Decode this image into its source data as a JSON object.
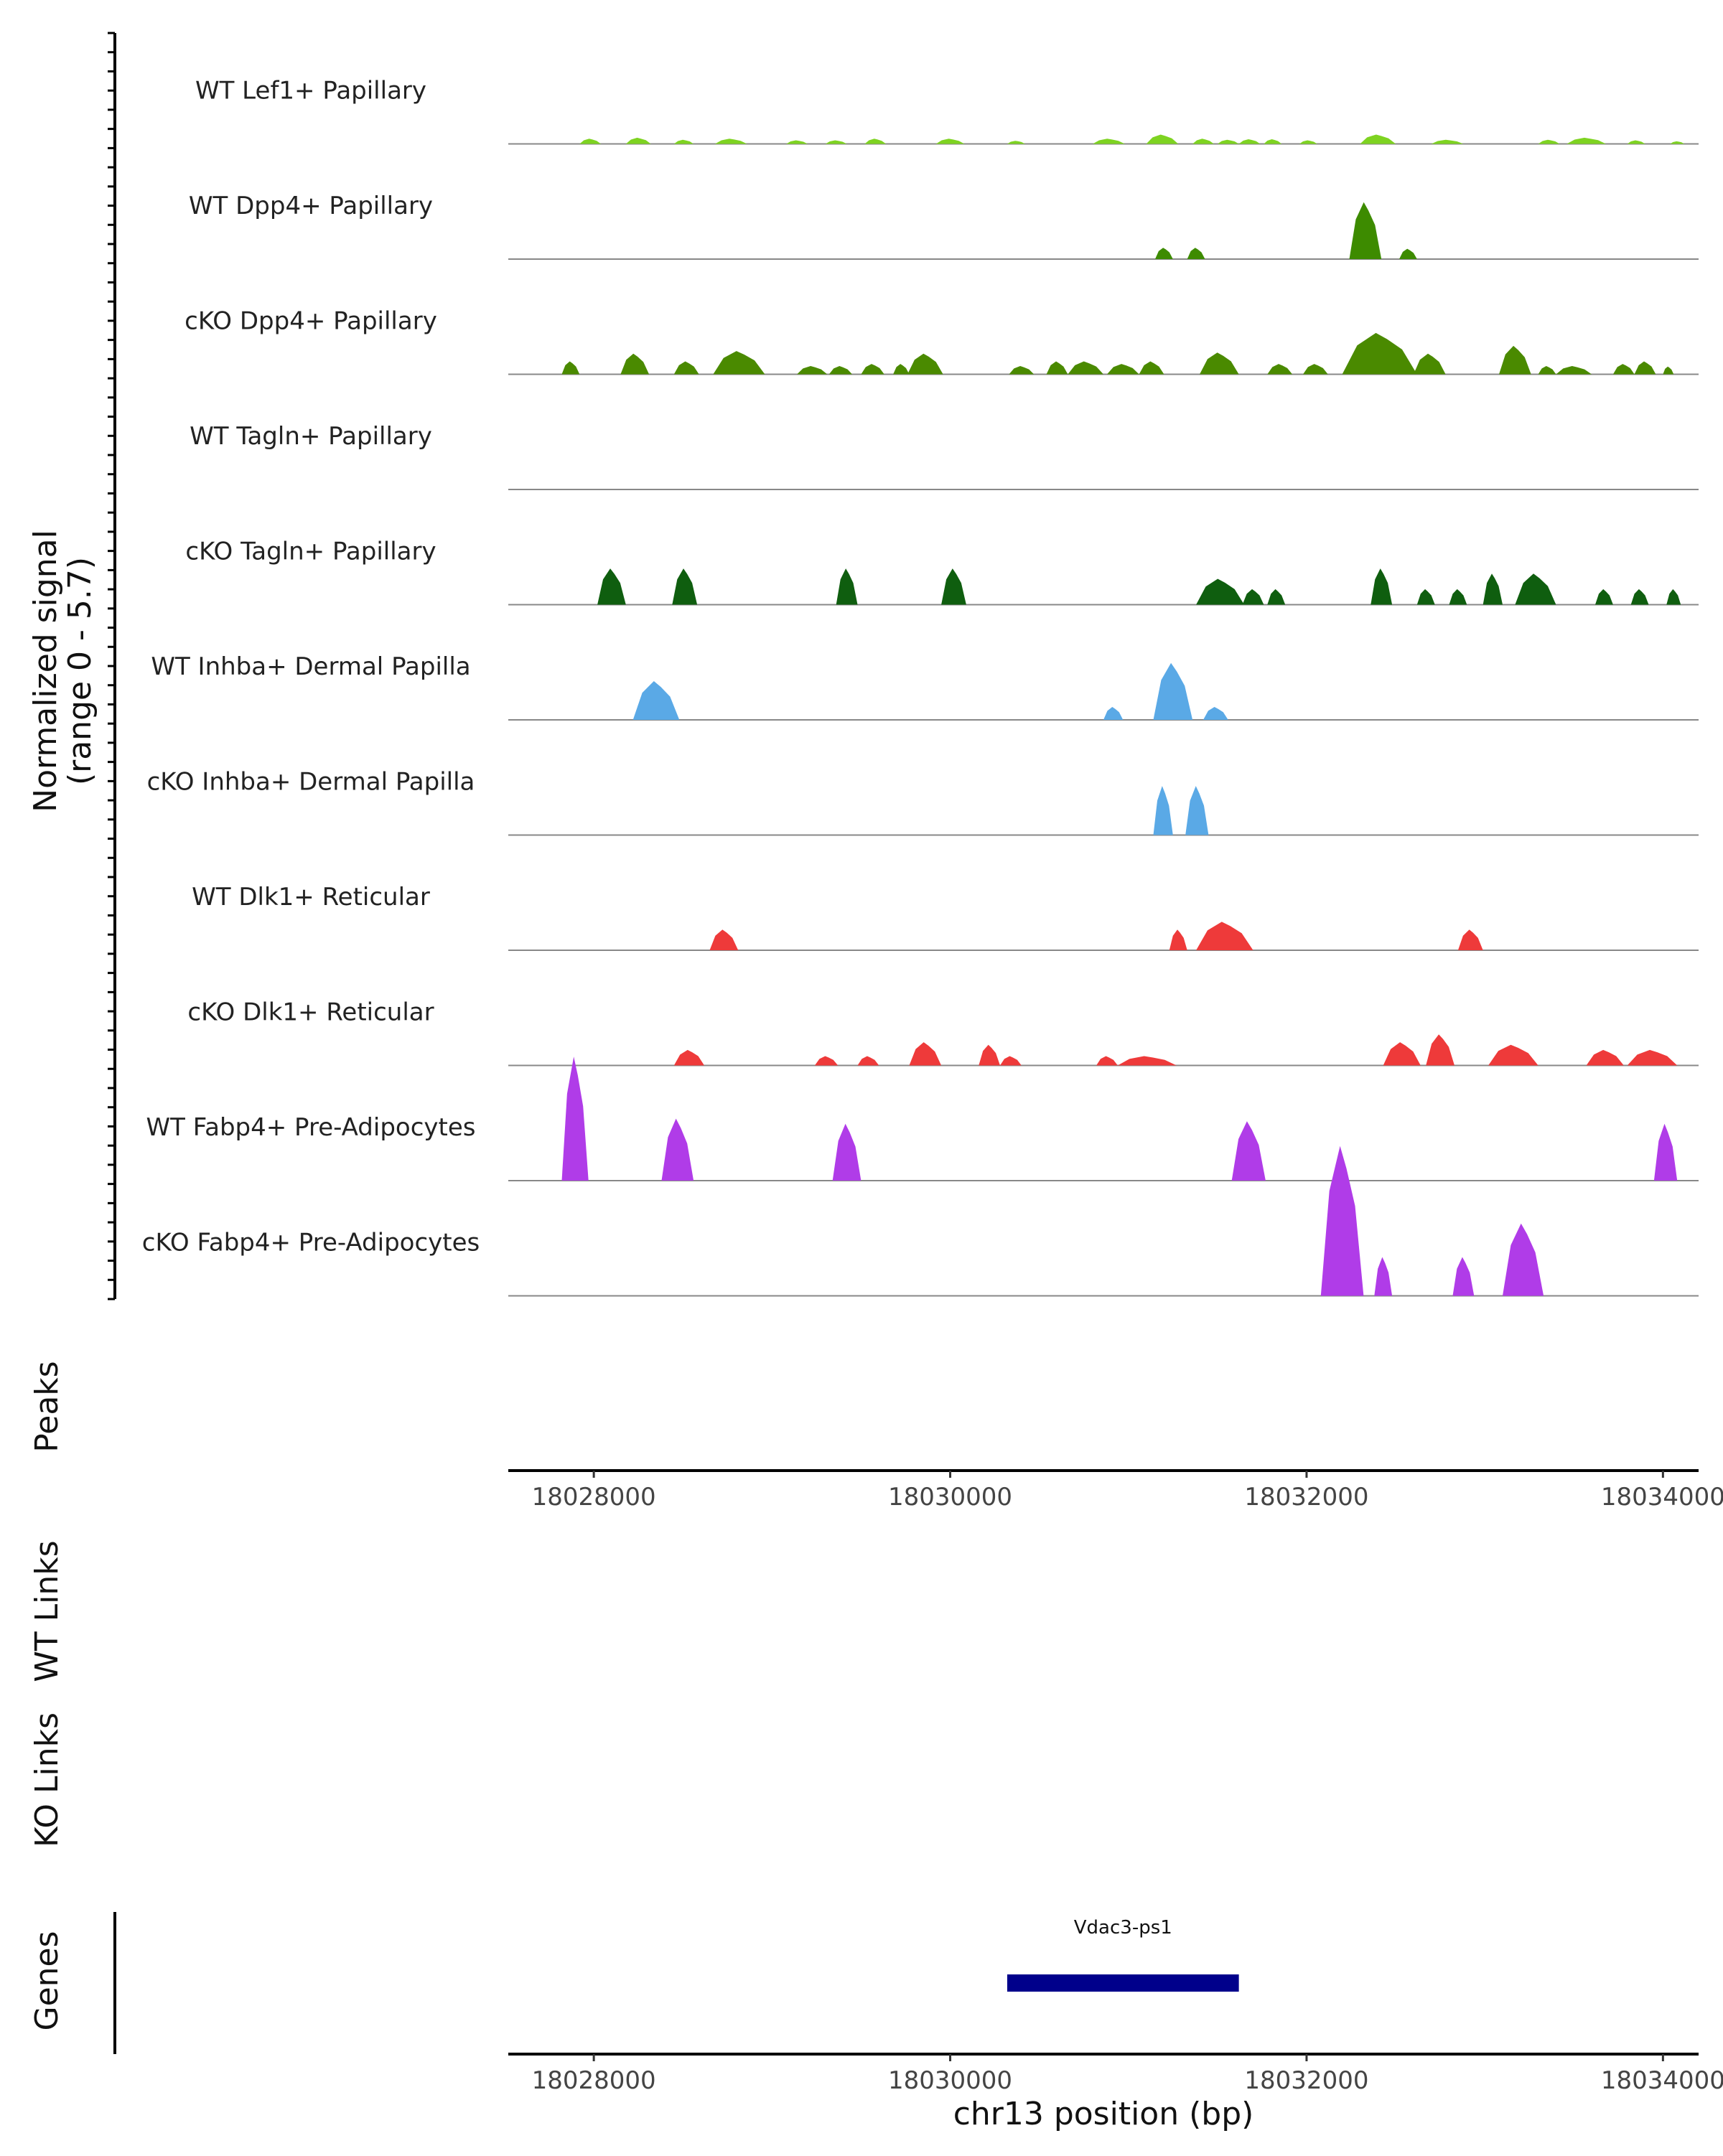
{
  "chart_data": {
    "type": "area",
    "title": "",
    "xlabel": "chr13 position (bp)",
    "ylabel_line1": "Normalized signal",
    "ylabel_line2": "(range 0 - 5.7)",
    "y_range": [
      0,
      5.7
    ],
    "x_range": [
      18027520,
      18034200
    ],
    "x_ticks": [
      18028000,
      18030000,
      18032000,
      18034000
    ],
    "x_tick_labels": [
      "18028000",
      "18030000",
      "18032000",
      "18034000"
    ],
    "section_labels": {
      "peaks": "Peaks",
      "wt_links": "WT Links",
      "ko_links": "KO Links",
      "genes": "Genes"
    },
    "tracks": [
      {
        "name": "WT Lef1+ Papillary",
        "color": "#7ed321",
        "peaks": [
          [
            18027920,
            18028040,
            0.1
          ],
          [
            18028180,
            18028320,
            0.12
          ],
          [
            18028450,
            18028560,
            0.08
          ],
          [
            18028680,
            18028860,
            0.1
          ],
          [
            18029080,
            18029200,
            0.07
          ],
          [
            18029300,
            18029420,
            0.07
          ],
          [
            18029520,
            18029640,
            0.1
          ],
          [
            18029920,
            18030080,
            0.1
          ],
          [
            18030320,
            18030420,
            0.06
          ],
          [
            18030800,
            18030980,
            0.1
          ],
          [
            18031100,
            18031280,
            0.18
          ],
          [
            18031360,
            18031480,
            0.1
          ],
          [
            18031500,
            18031620,
            0.08
          ],
          [
            18031620,
            18031740,
            0.09
          ],
          [
            18031760,
            18031860,
            0.09
          ],
          [
            18031960,
            18032060,
            0.07
          ],
          [
            18032300,
            18032500,
            0.18
          ],
          [
            18032700,
            18032880,
            0.08
          ],
          [
            18033300,
            18033420,
            0.08
          ],
          [
            18033460,
            18033680,
            0.12
          ],
          [
            18033800,
            18033900,
            0.07
          ],
          [
            18034040,
            18034120,
            0.05
          ]
        ]
      },
      {
        "name": "WT Dpp4+ Papillary",
        "color": "#3d8b00",
        "peaks": [
          [
            18031150,
            18031250,
            0.22
          ],
          [
            18031330,
            18031430,
            0.22
          ],
          [
            18032240,
            18032420,
            1.1
          ],
          [
            18032520,
            18032620,
            0.2
          ]
        ]
      },
      {
        "name": "cKO Dpp4+ Papillary",
        "color": "#4a8a00",
        "peaks": [
          [
            18027820,
            18027920,
            0.25
          ],
          [
            18028150,
            18028310,
            0.4
          ],
          [
            18028450,
            18028590,
            0.25
          ],
          [
            18028670,
            18028960,
            0.45
          ],
          [
            18029140,
            18029310,
            0.16
          ],
          [
            18029320,
            18029450,
            0.16
          ],
          [
            18029500,
            18029630,
            0.2
          ],
          [
            18029680,
            18029770,
            0.2
          ],
          [
            18029760,
            18029960,
            0.4
          ],
          [
            18030330,
            18030470,
            0.16
          ],
          [
            18030540,
            18030660,
            0.25
          ],
          [
            18030660,
            18030860,
            0.25
          ],
          [
            18030880,
            18031060,
            0.2
          ],
          [
            18031060,
            18031200,
            0.25
          ],
          [
            18031400,
            18031620,
            0.42
          ],
          [
            18031780,
            18031920,
            0.2
          ],
          [
            18031980,
            18032120,
            0.2
          ],
          [
            18032200,
            18032620,
            0.8
          ],
          [
            18032600,
            18032780,
            0.4
          ],
          [
            18033080,
            18033260,
            0.55
          ],
          [
            18033300,
            18033400,
            0.16
          ],
          [
            18033400,
            18033600,
            0.16
          ],
          [
            18033720,
            18033840,
            0.2
          ],
          [
            18033840,
            18033960,
            0.25
          ],
          [
            18034000,
            18034060,
            0.15
          ]
        ]
      },
      {
        "name": "WT Tagln+ Papillary",
        "color": "#1f6b1f",
        "peaks": []
      },
      {
        "name": "cKO Tagln+ Papillary",
        "color": "#0f5e0f",
        "peaks": [
          [
            18028020,
            18028180,
            0.7
          ],
          [
            18028440,
            18028580,
            0.7
          ],
          [
            18029360,
            18029480,
            0.7
          ],
          [
            18029950,
            18030090,
            0.7
          ],
          [
            18031380,
            18031650,
            0.5
          ],
          [
            18031640,
            18031760,
            0.3
          ],
          [
            18031780,
            18031880,
            0.3
          ],
          [
            18032360,
            18032480,
            0.7
          ],
          [
            18032620,
            18032720,
            0.3
          ],
          [
            18032800,
            18032900,
            0.3
          ],
          [
            18032990,
            18033100,
            0.6
          ],
          [
            18033170,
            18033400,
            0.6
          ],
          [
            18033620,
            18033720,
            0.3
          ],
          [
            18033820,
            18033920,
            0.3
          ],
          [
            18034020,
            18034100,
            0.3
          ]
        ]
      },
      {
        "name": "WT Inhba+ Dermal Papilla",
        "color": "#5aa9e6",
        "peaks": [
          [
            18028220,
            18028480,
            0.75
          ],
          [
            18030860,
            18030970,
            0.25
          ],
          [
            18031140,
            18031360,
            1.1
          ],
          [
            18031420,
            18031560,
            0.25
          ]
        ]
      },
      {
        "name": "cKO Inhba+ Dermal Papilla",
        "color": "#5aa9e6",
        "peaks": [
          [
            18031140,
            18031250,
            0.95
          ],
          [
            18031320,
            18031450,
            0.95
          ]
        ]
      },
      {
        "name": "WT Dlk1+ Reticular",
        "color": "#ee3a3a",
        "peaks": [
          [
            18028650,
            18028810,
            0.4
          ],
          [
            18031230,
            18031330,
            0.4
          ],
          [
            18031380,
            18031700,
            0.55
          ],
          [
            18032850,
            18032990,
            0.4
          ]
        ]
      },
      {
        "name": "cKO Dlk1+ Reticular",
        "color": "#ee3a3a",
        "peaks": [
          [
            18028450,
            18028620,
            0.3
          ],
          [
            18029240,
            18029370,
            0.18
          ],
          [
            18029480,
            18029600,
            0.18
          ],
          [
            18029770,
            18029950,
            0.45
          ],
          [
            18030160,
            18030280,
            0.4
          ],
          [
            18030280,
            18030400,
            0.18
          ],
          [
            18030820,
            18030940,
            0.18
          ],
          [
            18030940,
            18031270,
            0.18
          ],
          [
            18032430,
            18032640,
            0.45
          ],
          [
            18032670,
            18032830,
            0.6
          ],
          [
            18033020,
            18033300,
            0.4
          ],
          [
            18033570,
            18033780,
            0.3
          ],
          [
            18033800,
            18034080,
            0.3
          ]
        ]
      },
      {
        "name": "WT Fabp4+ Pre-Adipocytes",
        "color": "#b03ce8",
        "peaks": [
          [
            18027820,
            18027970,
            2.4
          ],
          [
            18028380,
            18028560,
            1.2
          ],
          [
            18029340,
            18029500,
            1.1
          ],
          [
            18031580,
            18031770,
            1.15
          ],
          [
            18033950,
            18034080,
            1.1
          ]
        ]
      },
      {
        "name": "cKO Fabp4+ Pre-Adipocytes",
        "color": "#b03ce8",
        "peaks": [
          [
            18032080,
            18032320,
            2.9
          ],
          [
            18032380,
            18032480,
            0.75
          ],
          [
            18032820,
            18032940,
            0.75
          ],
          [
            18033100,
            18033330,
            1.4
          ]
        ]
      }
    ],
    "genes": [
      {
        "name": "Vdac3-ps1",
        "start": 18030320,
        "end": 18031620,
        "color": "#00008b"
      }
    ]
  }
}
